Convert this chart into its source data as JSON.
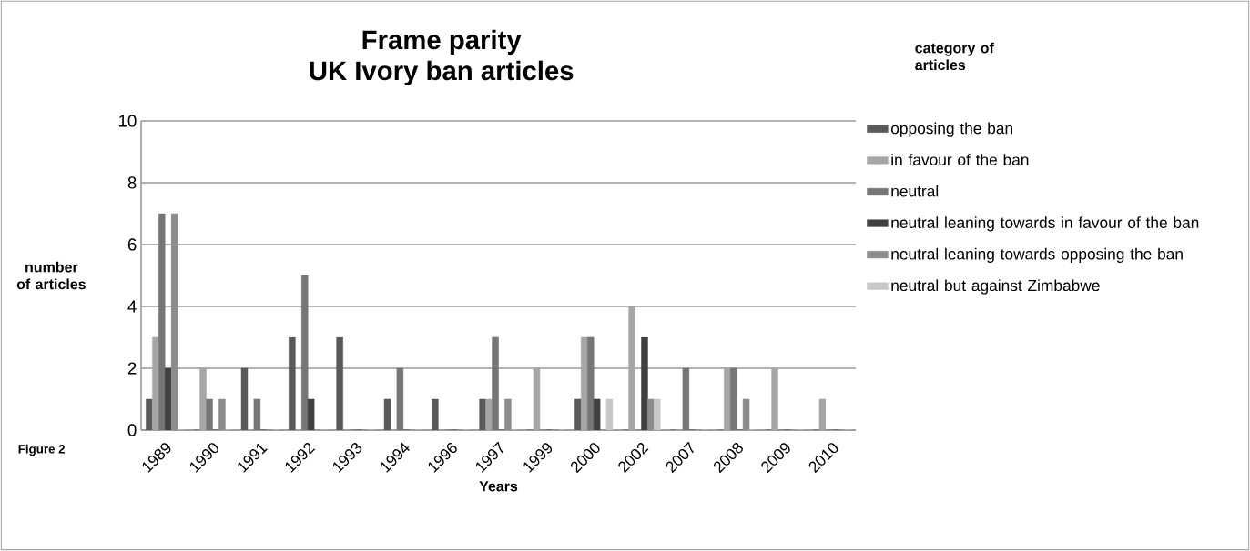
{
  "chart_data": {
    "type": "bar",
    "title": "Frame parity",
    "subtitle": "UK Ivory ban articles",
    "xlabel": "Years",
    "ylabel": "number of articles",
    "legend_title": "category of articles",
    "annotations": [
      "Figure 2"
    ],
    "categories": [
      "1989",
      "1990",
      "1991",
      "1992",
      "1993",
      "1994",
      "1996",
      "1997",
      "1999",
      "2000",
      "2002",
      "2007",
      "2008",
      "2009",
      "2010"
    ],
    "series": [
      {
        "name": "opposing the ban",
        "color": "#595959",
        "values": [
          1,
          0,
          2,
          3,
          3,
          1,
          1,
          1,
          0,
          1,
          0,
          0,
          0,
          0,
          0
        ]
      },
      {
        "name": "in favour of the ban",
        "color": "#a6a6a6",
        "values": [
          3,
          2,
          0,
          0,
          0,
          0,
          0,
          1,
          2,
          3,
          4,
          0,
          2,
          2,
          1
        ]
      },
      {
        "name": "neutral",
        "color": "#767676",
        "values": [
          7,
          1,
          1,
          5,
          0,
          2,
          0,
          3,
          0,
          3,
          0,
          2,
          2,
          0,
          0
        ]
      },
      {
        "name": "neutral leaning towards in favour of  the ban",
        "color": "#404040",
        "values": [
          2,
          0,
          0,
          1,
          0,
          0,
          0,
          0,
          0,
          1,
          3,
          0,
          0,
          0,
          0
        ]
      },
      {
        "name": "neutral leaning towards opposing the ban",
        "color": "#8c8c8c",
        "values": [
          7,
          1,
          0,
          0,
          0,
          0,
          0,
          1,
          0,
          0,
          1,
          0,
          1,
          0,
          0
        ]
      },
      {
        "name": "neutral but against Zimbabwe",
        "color": "#c8c8c8",
        "values": [
          0,
          0,
          0,
          0,
          0,
          0,
          0,
          0,
          0,
          1,
          1,
          0,
          0,
          0,
          0
        ]
      }
    ],
    "ylim": [
      0,
      10
    ],
    "yticks": [
      0,
      2,
      4,
      6,
      8,
      10
    ],
    "grid": "y",
    "legend": "right"
  }
}
